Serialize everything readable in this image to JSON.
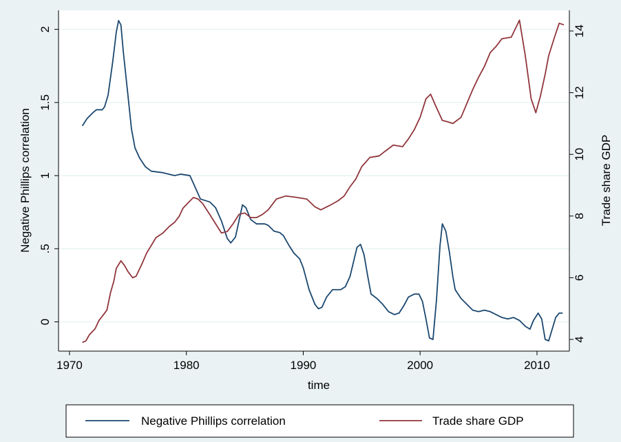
{
  "chart_data": {
    "type": "line",
    "x_label": "time",
    "y_label": "Negative Phillips correlation",
    "y2_label": "Trade share GDP",
    "xlim": [
      1969.06,
      2012.77
    ],
    "xticks": [
      1970,
      1980,
      1990,
      2000,
      2010
    ],
    "ylim": [
      -0.2,
      2.13
    ],
    "yticks": [
      0,
      {
        "value": 0.5,
        "label": ".5"
      },
      1,
      1.5,
      2
    ],
    "y2lim": [
      3.62,
      14.67
    ],
    "y2ticks": [
      4,
      6,
      8,
      10,
      12,
      14
    ],
    "grid": true,
    "legend": "bottom",
    "series": [
      {
        "name": "Negative Phillips correlation",
        "color": "#1a476f",
        "x": [
          1971.1,
          1971.5,
          1972.0,
          1972.3,
          1972.8,
          1973.0,
          1973.3,
          1973.7,
          1974.0,
          1974.2,
          1974.4,
          1974.6,
          1975.0,
          1975.3,
          1975.6,
          1976.0,
          1976.5,
          1977.0,
          1978.0,
          1978.5,
          1979.0,
          1979.5,
          1980.3,
          1980.7,
          1981.2,
          1982.0,
          1982.5,
          1983.0,
          1983.5,
          1983.8,
          1984.2,
          1984.5,
          1984.8,
          1985.1,
          1985.5,
          1986.0,
          1986.7,
          1987.0,
          1987.5,
          1988.0,
          1988.3,
          1988.8,
          1989.2,
          1989.7,
          1990.0,
          1990.5,
          1991.0,
          1991.3,
          1991.6,
          1992.0,
          1992.5,
          1992.8,
          1993.2,
          1993.6,
          1994.0,
          1994.3,
          1994.6,
          1994.9,
          1995.2,
          1995.5,
          1995.8,
          1996.3,
          1996.8,
          1997.3,
          1997.8,
          1998.2,
          1998.6,
          1999.0,
          1999.5,
          1999.9,
          2000.2,
          2000.5,
          2000.8,
          2001.1,
          2001.4,
          2001.7,
          2001.9,
          2002.2,
          2002.5,
          2002.8,
          2003.0,
          2003.5,
          2004.0,
          2004.5,
          2005.0,
          2005.5,
          2006.0,
          2006.5,
          2007.0,
          2007.5,
          2008.0,
          2008.5,
          2009.0,
          2009.4,
          2009.7,
          2010.1,
          2010.4,
          2010.7,
          2011.0,
          2011.3,
          2011.6,
          2011.9,
          2012.2
        ],
        "values": [
          1.34,
          1.39,
          1.43,
          1.45,
          1.45,
          1.47,
          1.55,
          1.78,
          1.98,
          2.06,
          2.03,
          1.85,
          1.55,
          1.32,
          1.19,
          1.12,
          1.06,
          1.03,
          1.02,
          1.01,
          1.0,
          1.01,
          1.0,
          0.93,
          0.84,
          0.82,
          0.78,
          0.69,
          0.57,
          0.54,
          0.58,
          0.69,
          0.8,
          0.78,
          0.7,
          0.67,
          0.67,
          0.66,
          0.62,
          0.61,
          0.59,
          0.52,
          0.47,
          0.43,
          0.37,
          0.22,
          0.12,
          0.09,
          0.1,
          0.17,
          0.22,
          0.22,
          0.22,
          0.24,
          0.31,
          0.41,
          0.51,
          0.53,
          0.46,
          0.32,
          0.19,
          0.16,
          0.12,
          0.07,
          0.05,
          0.06,
          0.11,
          0.17,
          0.19,
          0.19,
          0.14,
          0.02,
          -0.11,
          -0.12,
          0.15,
          0.52,
          0.67,
          0.62,
          0.48,
          0.31,
          0.22,
          0.16,
          0.12,
          0.08,
          0.07,
          0.08,
          0.07,
          0.05,
          0.03,
          0.02,
          0.03,
          0.01,
          -0.03,
          -0.05,
          0.01,
          0.06,
          0.02,
          -0.12,
          -0.13,
          -0.05,
          0.03,
          0.06,
          0.06
        ]
      },
      {
        "name": "Trade share GDP",
        "color": "#90353b",
        "axis": "y2",
        "x": [
          1971.1,
          1971.4,
          1971.7,
          1972.2,
          1972.5,
          1973.0,
          1973.2,
          1973.5,
          1973.8,
          1974.0,
          1974.4,
          1974.7,
          1975.0,
          1975.4,
          1975.7,
          1976.2,
          1976.6,
          1977.0,
          1977.4,
          1978.0,
          1978.5,
          1979.0,
          1979.4,
          1979.7,
          1980.2,
          1980.6,
          1981.0,
          1981.4,
          1982.0,
          1982.5,
          1983.0,
          1983.5,
          1984.0,
          1984.5,
          1985.0,
          1985.5,
          1986.0,
          1986.5,
          1987.0,
          1987.7,
          1988.5,
          1989.5,
          1990.3,
          1991.0,
          1991.5,
          1992.3,
          1993.0,
          1993.5,
          1994.0,
          1994.5,
          1995.0,
          1995.7,
          1996.5,
          1997.0,
          1997.7,
          1998.5,
          1999.0,
          1999.5,
          2000.0,
          2000.5,
          2000.9,
          2001.3,
          2001.9,
          2002.4,
          2002.8,
          2003.5,
          2004.0,
          2004.5,
          2005.0,
          2005.5,
          2006.0,
          2006.5,
          2007.0,
          2007.8,
          2008.5,
          2009.0,
          2009.5,
          2009.9,
          2010.3,
          2010.7,
          2011.0,
          2011.5,
          2011.9,
          2012.3
        ],
        "values": [
          3.9,
          3.95,
          4.15,
          4.35,
          4.6,
          4.85,
          4.95,
          5.5,
          5.9,
          6.3,
          6.55,
          6.4,
          6.2,
          6.0,
          6.05,
          6.45,
          6.8,
          7.05,
          7.3,
          7.45,
          7.65,
          7.8,
          8.0,
          8.25,
          8.45,
          8.6,
          8.55,
          8.4,
          8.05,
          7.75,
          7.45,
          7.5,
          7.75,
          8.05,
          8.1,
          7.95,
          7.95,
          8.05,
          8.2,
          8.55,
          8.65,
          8.6,
          8.55,
          8.3,
          8.2,
          8.35,
          8.5,
          8.65,
          8.95,
          9.2,
          9.6,
          9.9,
          9.95,
          10.1,
          10.3,
          10.25,
          10.5,
          10.8,
          11.2,
          11.8,
          11.95,
          11.6,
          11.1,
          11.05,
          11.0,
          11.2,
          11.65,
          12.1,
          12.5,
          12.85,
          13.3,
          13.5,
          13.75,
          13.8,
          14.35,
          13.2,
          11.8,
          11.35,
          11.9,
          12.6,
          13.2,
          13.8,
          14.25,
          14.2
        ]
      }
    ]
  }
}
